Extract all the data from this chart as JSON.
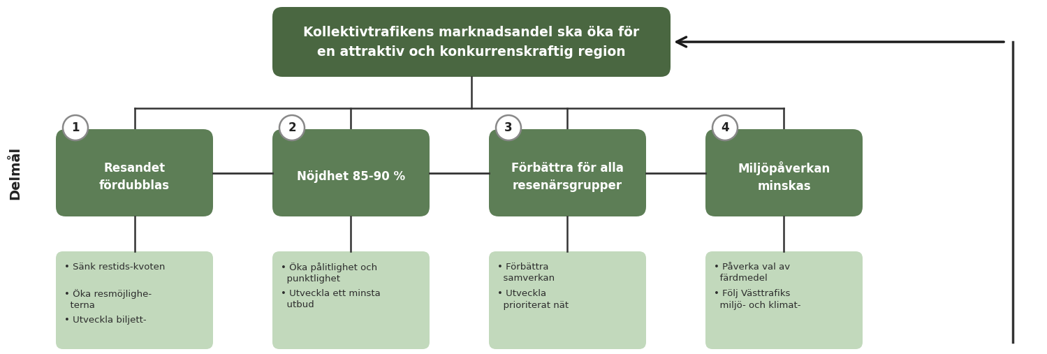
{
  "bg_color": "#ffffff",
  "dark_green": "#4a6741",
  "medium_green": "#5d7e56",
  "light_green": "#c2d9bc",
  "text_color_white": "#ffffff",
  "text_color_dark": "#2d2d2d",
  "title_text": "Kollektivtrafikens marknadsandel ska öka för\nen attraktiv och konkurrenskraftig region",
  "delmaal_label": "Delmål",
  "sub_boxes": [
    {
      "num": "1",
      "text": "Resandet\nfördubblas"
    },
    {
      "num": "2",
      "text": "Nöjdhet 85-90 %"
    },
    {
      "num": "3",
      "text": "Förbättra för alla\nresenärsgrupper"
    },
    {
      "num": "4",
      "text": "Miljöpåverkan\nminskas"
    }
  ],
  "bullet_boxes": [
    [
      "• Sänk restids-kvoten",
      "• Öka resmöjlighe-\n  terna",
      "• Utveckla biljett-"
    ],
    [
      "• Öka pålitlighet och\n  punktlighet",
      "• Utveckla ett minsta\n  utbud"
    ],
    [
      "• Förbättra\n  samverkan",
      "• Utveckla\n  prioriterat nät"
    ],
    [
      "• Påverka val av\n  färdmedel",
      "• Följ Västtrafiks\n  miljö- och klimat-"
    ]
  ],
  "line_color": "#333333",
  "arrow_color": "#1a1a1a"
}
